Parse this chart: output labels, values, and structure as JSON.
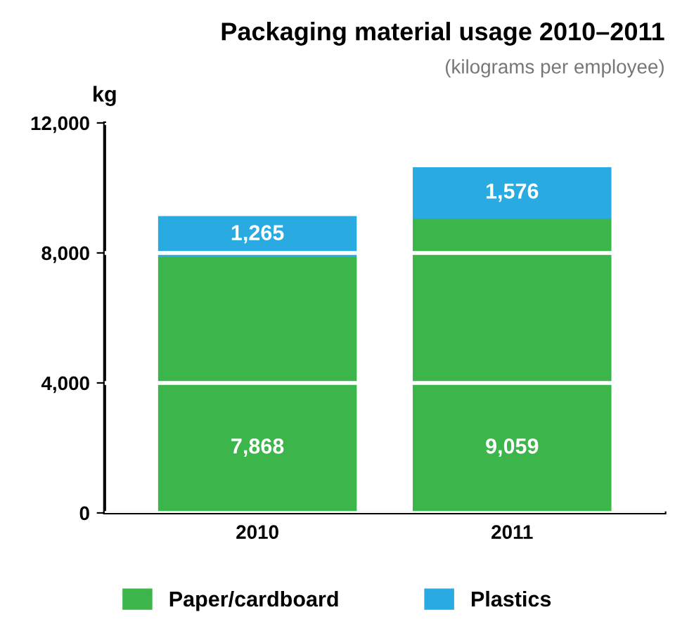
{
  "chart_data": {
    "type": "bar",
    "title": "Packaging material usage 2010–2011",
    "subtitle": "(kilograms per employee)",
    "ylabel": "kg",
    "categories": [
      "2010",
      "2011"
    ],
    "stacked": true,
    "series": [
      {
        "name": "Paper/cardboard",
        "color": "#3cb54a",
        "values": [
          7868,
          9059
        ],
        "value_labels": [
          "7,868",
          "9,059"
        ]
      },
      {
        "name": "Plastics",
        "color": "#29abe2",
        "values": [
          1265,
          1576
        ],
        "value_labels": [
          "1,265",
          "1,576"
        ]
      }
    ],
    "ylim": [
      0,
      12000
    ],
    "yticks": [
      {
        "value": 0,
        "label": "0"
      },
      {
        "value": 4000,
        "label": "4,000"
      },
      {
        "value": 8000,
        "label": "8,000"
      },
      {
        "value": 12000,
        "label": "12,000"
      }
    ],
    "grid": "y",
    "legend": "bottom"
  }
}
